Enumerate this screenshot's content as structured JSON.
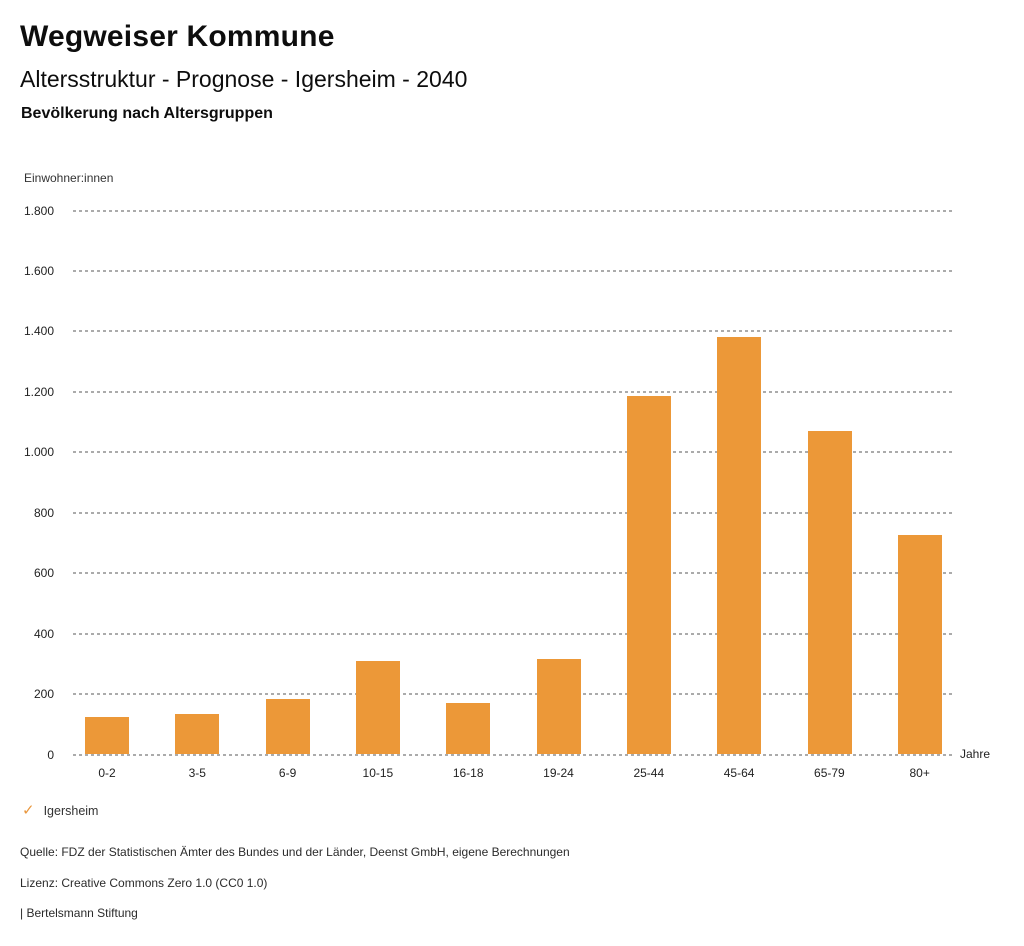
{
  "header": {
    "title": "Wegweiser Kommune",
    "subtitle": "Altersstruktur - Prognose - Igersheim - 2040",
    "section_label": "Bevölkerung nach Altersgruppen"
  },
  "chart_data": {
    "type": "bar",
    "title": "Bevölkerung nach Altersgruppen",
    "xlabel": "Jahre",
    "ylabel": "Einwohner:innen",
    "categories": [
      "0-2",
      "3-5",
      "6-9",
      "10-15",
      "16-18",
      "19-24",
      "25-44",
      "45-64",
      "65-79",
      "80+"
    ],
    "series": [
      {
        "name": "Igersheim",
        "values": [
          125,
          135,
          185,
          310,
          170,
          315,
          1185,
          1380,
          1070,
          725
        ]
      }
    ],
    "ylim": [
      0,
      1800
    ],
    "ytick_values": [
      0,
      200,
      400,
      600,
      800,
      1000,
      1200,
      1400,
      1600,
      1800
    ],
    "ytick_labels": [
      "0",
      "200",
      "400",
      "600",
      "800",
      "1.000",
      "1.200",
      "1.400",
      "1.600",
      "1.800"
    ],
    "grid": "horizontal-dotted",
    "legend_position": "bottom-left"
  },
  "legend": {
    "check_icon": "✓",
    "label": "Igersheim"
  },
  "footer": {
    "source": "Quelle: FDZ der Statistischen Ämter des Bundes und der Länder, Deenst GmbH, eigene Berechnungen",
    "license": "Lizenz: Creative Commons Zero 1.0 (CC0 1.0)",
    "attribution": "| Bertelsmann Stiftung"
  },
  "colors": {
    "bar": "#EC9838",
    "grid": "#ABABAB",
    "legend_check": "#E9973E",
    "title_text": "#0D0D0D",
    "tick_text": "#222222"
  }
}
